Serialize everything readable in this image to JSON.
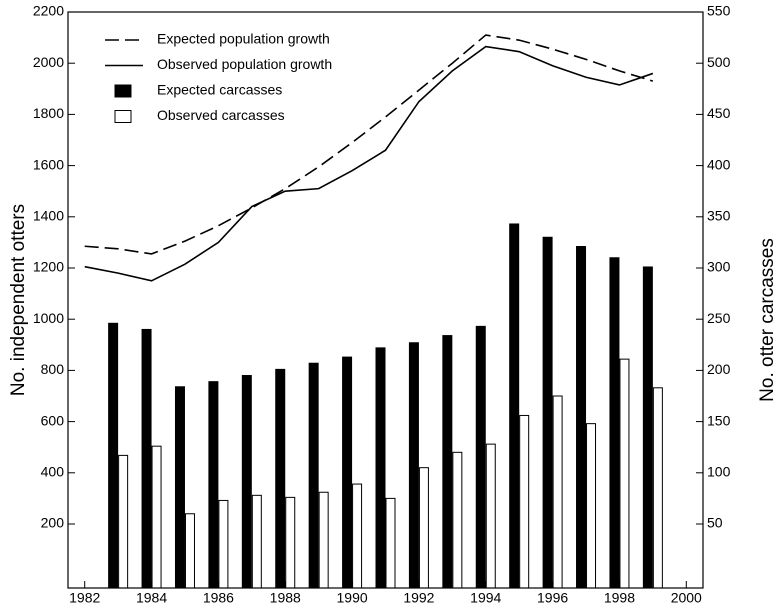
{
  "chart_data": {
    "type": "combo",
    "x": [
      1982,
      1983,
      1984,
      1985,
      1986,
      1987,
      1988,
      1989,
      1990,
      1991,
      1992,
      1993,
      1994,
      1995,
      1996,
      1997,
      1998,
      1999
    ],
    "series": [
      {
        "name": "Expected population growth",
        "type": "line",
        "style": "dashed",
        "color": "#000000",
        "values": [
          1285,
          1275,
          1255,
          1305,
          1365,
          1435,
          1510,
          1595,
          1690,
          1790,
          1895,
          2000,
          2110,
          2090,
          2055,
          2015,
          1970,
          1930
        ]
      },
      {
        "name": "Observed population growth",
        "type": "line",
        "style": "solid",
        "color": "#000000",
        "values": [
          1205,
          1180,
          1150,
          1215,
          1300,
          1440,
          1500,
          1510,
          1580,
          1660,
          1850,
          1970,
          2065,
          2045,
          1990,
          1945,
          1915,
          1960
        ]
      },
      {
        "name": "Expected carcasses",
        "type": "bar",
        "axis": "y2",
        "color": "#000000",
        "values": [
          null,
          246,
          240,
          184,
          189,
          195,
          201,
          207,
          213,
          222,
          227,
          234,
          243,
          343,
          330,
          321,
          310,
          301
        ]
      },
      {
        "name": "Observed carcasses",
        "type": "bar",
        "axis": "y2",
        "color": "#ffffff",
        "values": [
          null,
          117,
          126,
          60,
          73,
          78,
          76,
          81,
          89,
          75,
          105,
          120,
          128,
          156,
          175,
          148,
          211,
          183
        ]
      }
    ],
    "y_label": "No. independent otters",
    "y2_label": "No. otter carcasses",
    "xlim": [
      1981.5,
      2000.5
    ],
    "xticks": [
      1982,
      1984,
      1986,
      1988,
      1990,
      1992,
      1994,
      1996,
      1998,
      2000
    ],
    "ylim": [
      -50,
      2200
    ],
    "yticks": [
      200,
      400,
      600,
      800,
      1000,
      1200,
      1400,
      1600,
      1800,
      2000,
      2200
    ],
    "y2lim": [
      -12.5,
      550
    ],
    "y2ticks": [
      50,
      100,
      150,
      200,
      250,
      300,
      350,
      400,
      450,
      500,
      550
    ],
    "grid": false,
    "legend": "upper left"
  }
}
